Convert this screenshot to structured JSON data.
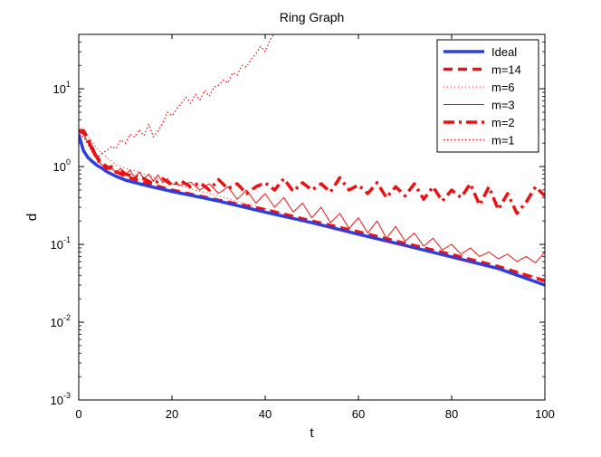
{
  "chart_data": {
    "type": "line",
    "title": "Ring Graph",
    "xlabel": "t",
    "ylabel": "d",
    "xlim": [
      0,
      100
    ],
    "ylim": [
      0.001,
      50
    ],
    "yscale": "log",
    "xticks": [
      0,
      20,
      40,
      60,
      80,
      100
    ],
    "xtick_labels": [
      "0",
      "20",
      "40",
      "60",
      "80",
      "100"
    ],
    "yticks": [
      0.001,
      0.01,
      0.1,
      1,
      10
    ],
    "ytick_labels": [
      {
        "base": "10",
        "exp": "-3"
      },
      {
        "base": "10",
        "exp": "-2"
      },
      {
        "base": "10",
        "exp": "-1"
      },
      {
        "base": "10",
        "exp": "0"
      },
      {
        "base": "10",
        "exp": "1"
      }
    ],
    "legend_position": "top-right",
    "series": [
      {
        "name": "Ideal",
        "color": "#2b3fe0",
        "style": "solid-thick",
        "x": [
          0,
          1,
          2,
          3,
          4,
          5,
          6,
          8,
          10,
          15,
          20,
          30,
          40,
          50,
          60,
          70,
          80,
          90,
          100
        ],
        "y": [
          2.6,
          1.6,
          1.3,
          1.15,
          1.03,
          0.95,
          0.86,
          0.75,
          0.67,
          0.56,
          0.48,
          0.36,
          0.26,
          0.19,
          0.135,
          0.097,
          0.069,
          0.049,
          0.03
        ]
      },
      {
        "name": "m=14",
        "color": "#ee1111",
        "style": "dashed-thick",
        "x": [
          0,
          1,
          2,
          3,
          4,
          5,
          6,
          8,
          10,
          15,
          20,
          30,
          40,
          50,
          60,
          70,
          80,
          90,
          100
        ],
        "y": [
          2.8,
          2.8,
          2.2,
          1.6,
          1.3,
          1.1,
          1.0,
          0.86,
          0.75,
          0.6,
          0.5,
          0.37,
          0.28,
          0.2,
          0.145,
          0.103,
          0.074,
          0.052,
          0.034
        ]
      },
      {
        "name": "m=6",
        "color": "#ee1111",
        "style": "dotted",
        "x": [
          0,
          2,
          4,
          6,
          8,
          10,
          13,
          16,
          20,
          25,
          30,
          35,
          40,
          45,
          50,
          55,
          60,
          65,
          70,
          75,
          80,
          85,
          90,
          95,
          100
        ],
        "y": [
          2.8,
          2.4,
          1.7,
          1.3,
          1.05,
          0.95,
          0.85,
          0.73,
          0.6,
          0.5,
          0.42,
          0.34,
          0.29,
          0.23,
          0.19,
          0.155,
          0.13,
          0.11,
          0.095,
          0.08,
          0.068,
          0.057,
          0.049,
          0.042,
          0.036
        ]
      },
      {
        "name": "m=3",
        "color": "#ee1111",
        "style": "solid-thin",
        "x": [
          0,
          1,
          2,
          3,
          4,
          5,
          6,
          7,
          8,
          9,
          10,
          11,
          12,
          13,
          14,
          15,
          16,
          17,
          18,
          19,
          20,
          22,
          24,
          26,
          28,
          30,
          32,
          34,
          36,
          38,
          40,
          42,
          44,
          46,
          48,
          50,
          52,
          54,
          56,
          58,
          60,
          62,
          64,
          66,
          68,
          70,
          72,
          74,
          76,
          78,
          80,
          82,
          84,
          86,
          88,
          90,
          92,
          94,
          96,
          98,
          100
        ],
        "y": [
          2.8,
          2.6,
          2.0,
          1.5,
          1.2,
          1.05,
          0.9,
          0.98,
          0.82,
          0.95,
          0.78,
          0.9,
          0.72,
          0.85,
          0.7,
          0.8,
          0.65,
          0.78,
          0.62,
          0.7,
          0.6,
          0.58,
          0.63,
          0.5,
          0.6,
          0.45,
          0.55,
          0.38,
          0.5,
          0.34,
          0.45,
          0.3,
          0.4,
          0.26,
          0.34,
          0.22,
          0.3,
          0.19,
          0.25,
          0.16,
          0.22,
          0.14,
          0.2,
          0.12,
          0.17,
          0.11,
          0.14,
          0.095,
          0.12,
          0.085,
          0.1,
          0.075,
          0.09,
          0.07,
          0.08,
          0.065,
          0.075,
          0.06,
          0.07,
          0.058,
          0.08
        ]
      },
      {
        "name": "m=2",
        "color": "#ee1111",
        "style": "dashdot-thick",
        "x": [
          0,
          1,
          2,
          3,
          4,
          5,
          6,
          7,
          8,
          9,
          10,
          12,
          14,
          16,
          18,
          20,
          22,
          24,
          26,
          28,
          30,
          32,
          34,
          36,
          38,
          40,
          42,
          44,
          46,
          48,
          50,
          52,
          54,
          56,
          58,
          60,
          62,
          64,
          66,
          68,
          70,
          72,
          74,
          76,
          78,
          80,
          82,
          84,
          86,
          88,
          90,
          92,
          94,
          96,
          98,
          100
        ],
        "y": [
          2.9,
          2.9,
          2.3,
          1.7,
          1.2,
          1.1,
          0.95,
          1.0,
          0.85,
          0.9,
          0.8,
          0.75,
          0.7,
          0.6,
          0.7,
          0.58,
          0.65,
          0.55,
          0.62,
          0.5,
          0.68,
          0.52,
          0.6,
          0.45,
          0.55,
          0.62,
          0.5,
          0.7,
          0.48,
          0.62,
          0.5,
          0.6,
          0.47,
          0.72,
          0.5,
          0.58,
          0.45,
          0.62,
          0.4,
          0.55,
          0.42,
          0.6,
          0.38,
          0.55,
          0.36,
          0.5,
          0.4,
          0.6,
          0.32,
          0.55,
          0.28,
          0.45,
          0.25,
          0.35,
          0.55,
          0.42
        ]
      },
      {
        "name": "m=1",
        "color": "#ee1111",
        "style": "dotted-dense",
        "x": [
          0,
          1,
          2,
          3,
          4,
          5,
          6,
          7,
          8,
          9,
          10,
          11,
          12,
          13,
          14,
          15,
          16,
          17,
          18,
          19,
          20,
          21,
          22,
          23,
          24,
          25,
          26,
          27,
          28,
          29,
          30,
          31,
          32,
          33,
          34,
          35,
          36,
          37,
          38,
          39,
          40,
          41,
          42
        ],
        "y": [
          2.6,
          2.4,
          1.9,
          1.5,
          1.3,
          1.5,
          1.6,
          1.8,
          1.7,
          2.2,
          2.0,
          2.6,
          2.4,
          3.0,
          2.5,
          3.5,
          2.4,
          2.9,
          3.6,
          5.0,
          4.5,
          5.5,
          6.5,
          7.8,
          6.5,
          8.5,
          7.2,
          9.5,
          8.0,
          10.5,
          11.0,
          13.0,
          12.0,
          16.0,
          15.0,
          20.0,
          19.0,
          24.0,
          28.0,
          35.0,
          30.0,
          42.0,
          52.0
        ]
      }
    ]
  }
}
